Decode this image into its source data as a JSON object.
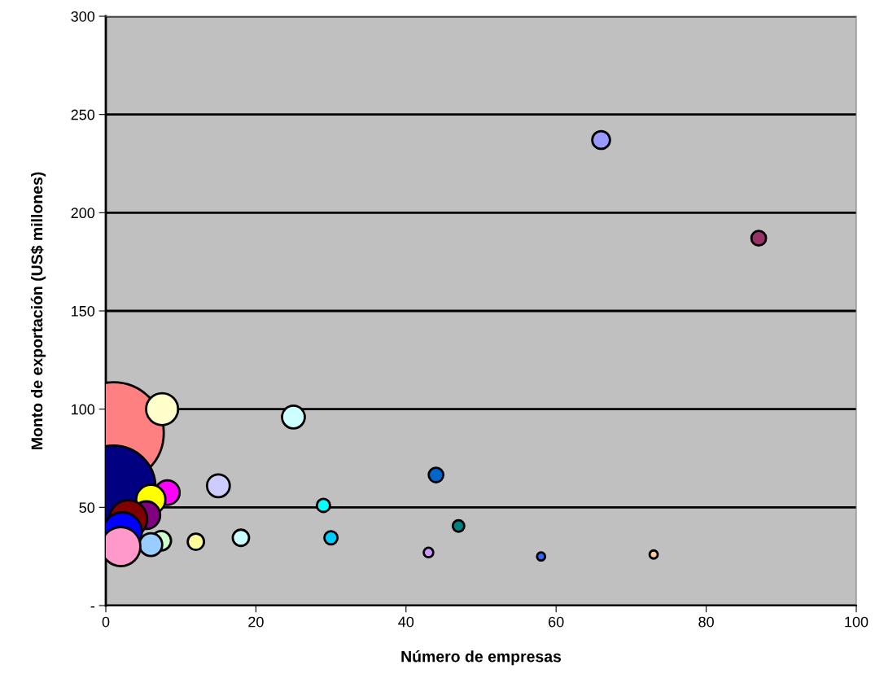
{
  "chart_data": {
    "type": "bubble",
    "xlabel": "Número de empresas",
    "ylabel": "Monto de exportación (US$ millones)",
    "x": [
      1,
      7.5,
      1,
      25,
      15,
      8.2,
      6,
      5.4,
      3,
      2.2,
      7.4,
      6,
      2,
      12,
      18,
      29,
      30,
      44,
      47,
      43,
      58,
      73,
      66,
      87
    ],
    "values": [
      88,
      100,
      60,
      96,
      61,
      57.5,
      54,
      46,
      44,
      37.5,
      33,
      31,
      30,
      32.5,
      34.5,
      51,
      34.5,
      66.5,
      40.5,
      27,
      25,
      26,
      237,
      187
    ],
    "sizes": [
      1,
      0.1,
      0.7,
      0.051,
      0.051,
      0.059,
      0.084,
      0.075,
      0.14,
      0.15,
      0.037,
      0.051,
      0.15,
      0.026,
      0.026,
      0.017,
      0.017,
      0.021,
      0.013,
      0.009,
      0.0065,
      0.0065,
      0.031,
      0.021
    ],
    "colors": [
      "#ff8080",
      "#ffffcc",
      "#000080",
      "#ccffff",
      "#ccccff",
      "#ff00ff",
      "#ffff00",
      "#800080",
      "#800000",
      "#0000ff",
      "#ccffcc",
      "#99ccff",
      "#ff99cc",
      "#ffff99",
      "#ccffff",
      "#00ffff",
      "#00ccff",
      "#0066cc",
      "#008080",
      "#cc99ff",
      "#3366ff",
      "#ffcc99",
      "#9999ff",
      "#993366"
    ],
    "xlim": [
      0,
      100
    ],
    "xticks": [
      0,
      20,
      40,
      60,
      80,
      100
    ],
    "ylim": [
      0,
      300
    ],
    "yticks": [
      {
        "value": 0,
        "label": "-"
      },
      50,
      100,
      150,
      200,
      250,
      300
    ],
    "grid": "y",
    "legend": false
  }
}
